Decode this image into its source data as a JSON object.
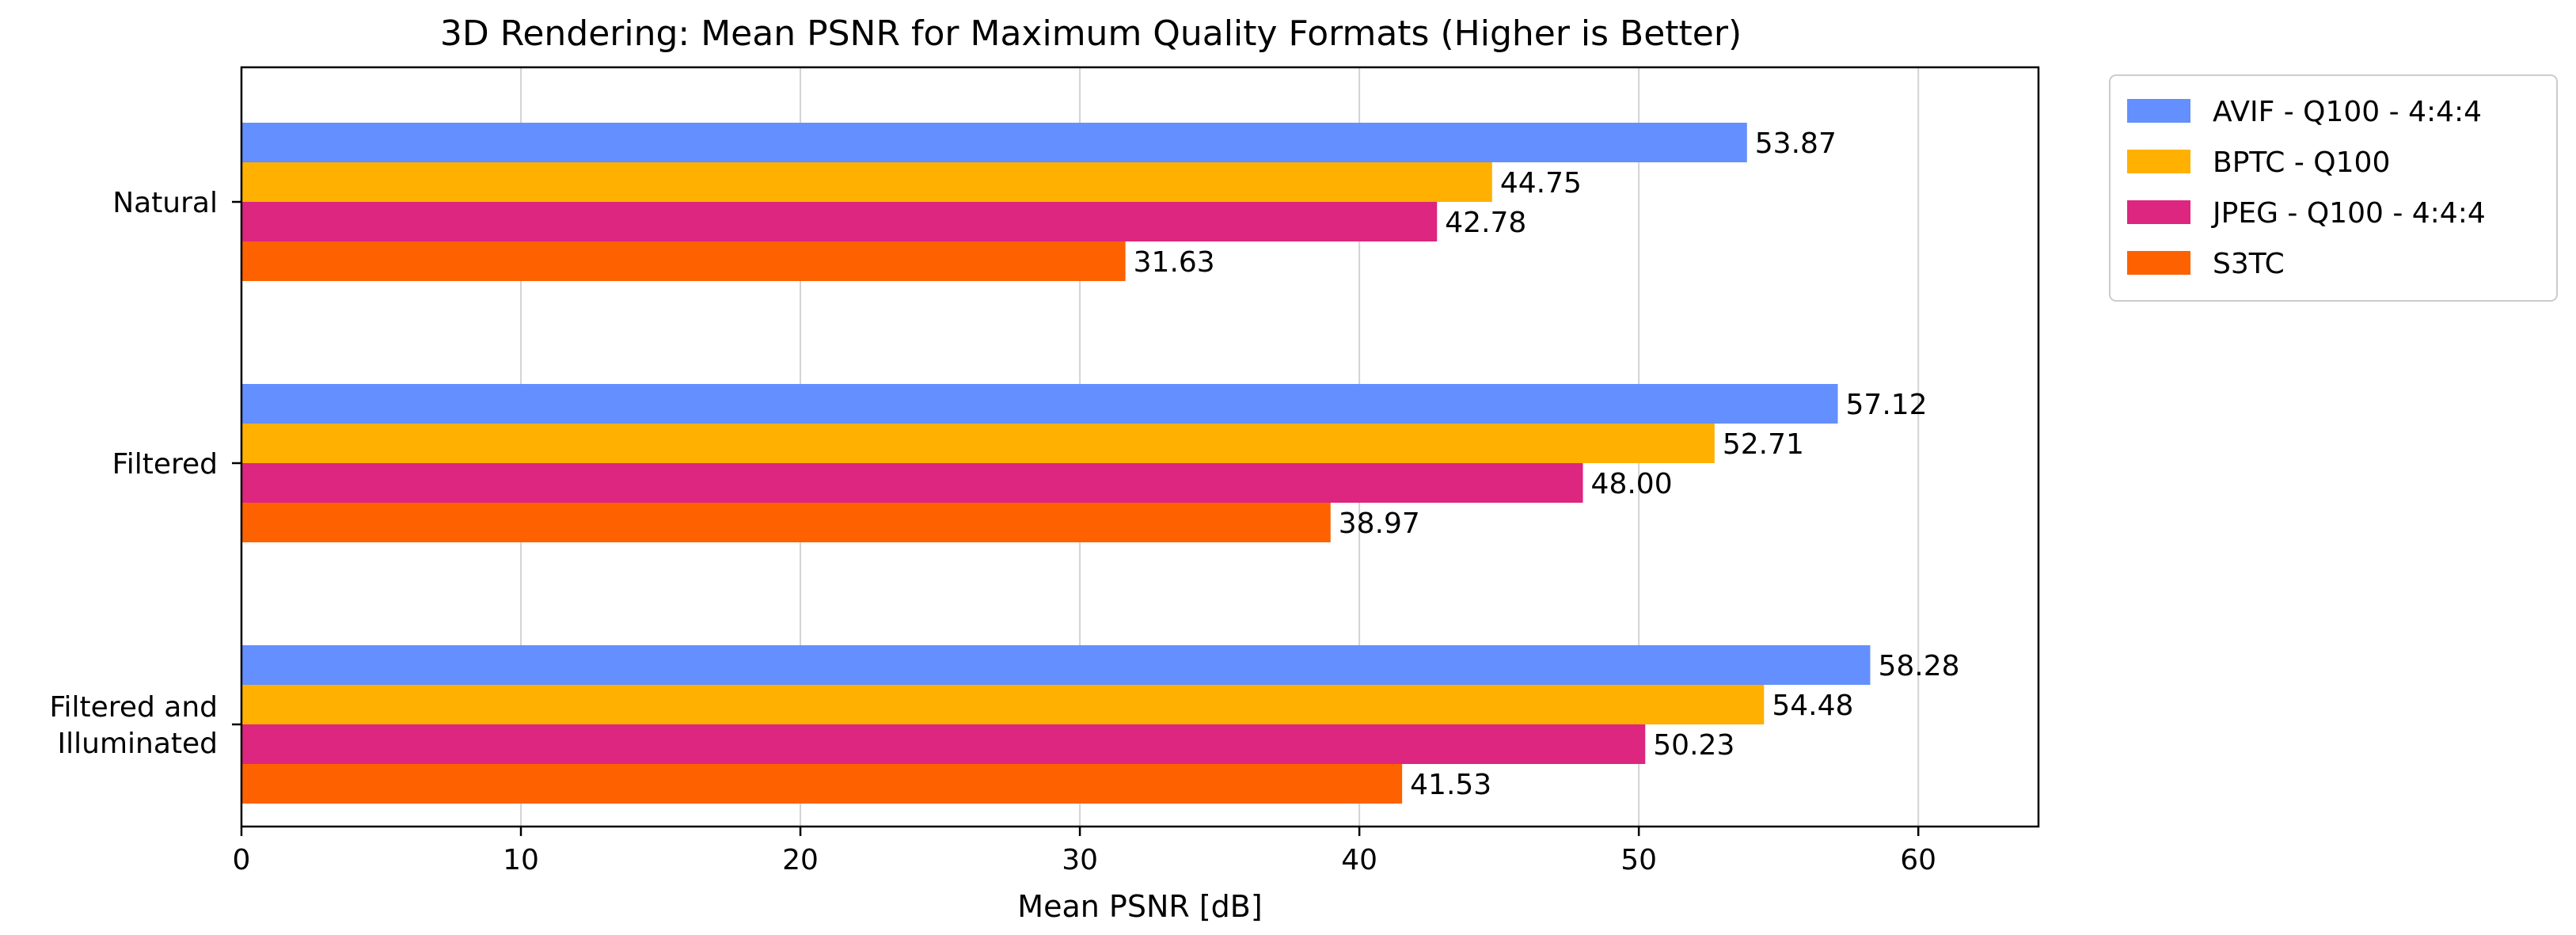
{
  "chart_data": {
    "type": "bar",
    "orientation": "horizontal",
    "title": "3D Rendering: Mean PSNR for Maximum Quality Formats (Higher is Better)",
    "xlabel": "Mean PSNR [dB]",
    "ylabel": "",
    "xlim": [
      0,
      64.3
    ],
    "xticks": [
      0,
      10,
      20,
      30,
      40,
      50,
      60
    ],
    "grid": "vertical",
    "legend_position": "outside-top-right",
    "categories": [
      [
        "Natural"
      ],
      [
        "Filtered"
      ],
      [
        "Filtered and",
        "Illuminated"
      ]
    ],
    "series": [
      {
        "name": "AVIF - Q100 - 4:4:4",
        "color": "#648FFF",
        "values": [
          53.87,
          57.12,
          58.28
        ],
        "labels": [
          "53.87",
          "57.12",
          "58.28"
        ]
      },
      {
        "name": "BPTC - Q100",
        "color": "#FFB000",
        "values": [
          44.75,
          52.71,
          54.48
        ],
        "labels": [
          "44.75",
          "52.71",
          "54.48"
        ]
      },
      {
        "name": "JPEG - Q100 - 4:4:4",
        "color": "#DC267F",
        "values": [
          42.78,
          48.0,
          50.23
        ],
        "labels": [
          "42.78",
          "48.00",
          "50.23"
        ]
      },
      {
        "name": "S3TC",
        "color": "#FE6100",
        "values": [
          31.63,
          38.97,
          41.53
        ],
        "labels": [
          "31.63",
          "38.97",
          "41.53"
        ]
      }
    ]
  }
}
